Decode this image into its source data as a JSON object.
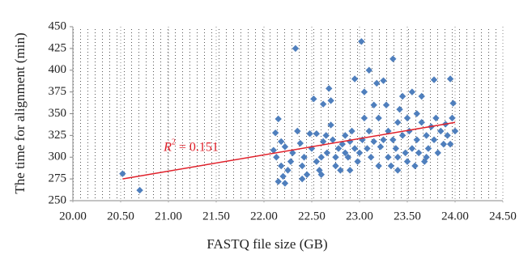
{
  "chart_data": {
    "type": "scatter",
    "xlabel": "FASTQ file size (GB)",
    "ylabel": "The time for alignment (min)",
    "xlim": [
      20,
      24.5
    ],
    "xticks": [
      {
        "value": 20,
        "label": "20.00"
      },
      {
        "value": 20.5,
        "label": "20.50"
      },
      {
        "value": 21,
        "label": "21.00"
      },
      {
        "value": 21.5,
        "label": "21.50"
      },
      {
        "value": 22,
        "label": "22.00"
      },
      {
        "value": 22.5,
        "label": "22.50"
      },
      {
        "value": 23,
        "label": "23.00"
      },
      {
        "value": 23.5,
        "label": "23.50"
      },
      {
        "value": 24,
        "label": "24.00"
      },
      {
        "value": 24.5,
        "label": "24.50"
      }
    ],
    "ylim": [
      250,
      450
    ],
    "yticks": [
      250,
      275,
      300,
      325,
      350,
      375,
      400,
      425,
      450
    ],
    "grid": true,
    "series": [
      {
        "color": "#4f7fbd",
        "x": [
          20.52,
          20.7,
          22.1,
          22.12,
          22.15,
          22.13,
          22.18,
          22.2,
          22.15,
          22.22,
          22.25,
          22.28,
          22.18,
          22.22,
          22.3,
          22.33,
          22.35,
          22.38,
          22.4,
          22.42,
          22.45,
          22.48,
          22.5,
          22.52,
          22.55,
          22.55,
          22.58,
          22.6,
          22.62,
          22.62,
          22.65,
          22.66,
          22.68,
          22.7,
          22.7,
          22.72,
          22.75,
          22.75,
          22.78,
          22.8,
          22.82,
          22.85,
          22.85,
          22.88,
          22.9,
          22.92,
          22.95,
          22.95,
          22.98,
          23.0,
          23.02,
          23.03,
          23.05,
          23.05,
          23.08,
          23.1,
          23.1,
          23.12,
          23.15,
          23.15,
          23.18,
          23.2,
          23.2,
          23.22,
          23.25,
          23.25,
          23.28,
          23.3,
          23.3,
          23.33,
          23.35,
          23.35,
          23.38,
          23.4,
          23.4,
          23.42,
          23.45,
          23.45,
          23.48,
          23.5,
          23.5,
          23.52,
          23.55,
          23.55,
          23.58,
          23.6,
          23.6,
          23.62,
          23.65,
          23.65,
          23.68,
          23.7,
          23.72,
          23.75,
          23.78,
          23.78,
          23.8,
          23.82,
          23.85,
          23.88,
          23.9,
          23.92,
          23.95,
          23.95,
          23.97,
          23.98,
          24.0,
          22.9,
          23.4,
          22.4,
          22.6,
          23.7
        ],
        "values": [
          281,
          262,
          308,
          328,
          344,
          300,
          290,
          278,
          272,
          270,
          285,
          295,
          318,
          312,
          305,
          425,
          330,
          316,
          290,
          300,
          280,
          327,
          310,
          367,
          327,
          295,
          285,
          300,
          361,
          318,
          325,
          305,
          379,
          365,
          337,
          320,
          300,
          290,
          310,
          285,
          315,
          305,
          325,
          300,
          318,
          330,
          390,
          310,
          295,
          305,
          433,
          320,
          375,
          345,
          310,
          400,
          330,
          300,
          360,
          318,
          385,
          345,
          290,
          312,
          388,
          320,
          360,
          300,
          330,
          290,
          413,
          320,
          310,
          340,
          300,
          355,
          370,
          325,
          305,
          345,
          295,
          330,
          375,
          310,
          290,
          350,
          320,
          305,
          370,
          340,
          295,
          325,
          310,
          335,
          389,
          320,
          345,
          305,
          330,
          315,
          338,
          325,
          390,
          315,
          345,
          362,
          330,
          285,
          285,
          275,
          280,
          300
        ]
      }
    ],
    "trendline": {
      "x": [
        20.52,
        24.0
      ],
      "values": [
        275,
        340
      ],
      "color": "#e0202a"
    },
    "annotation": {
      "base": "R",
      "superscript": "2",
      "text": " = 0.151",
      "color": "#e0202a",
      "x": 20.95,
      "y": 311
    }
  }
}
